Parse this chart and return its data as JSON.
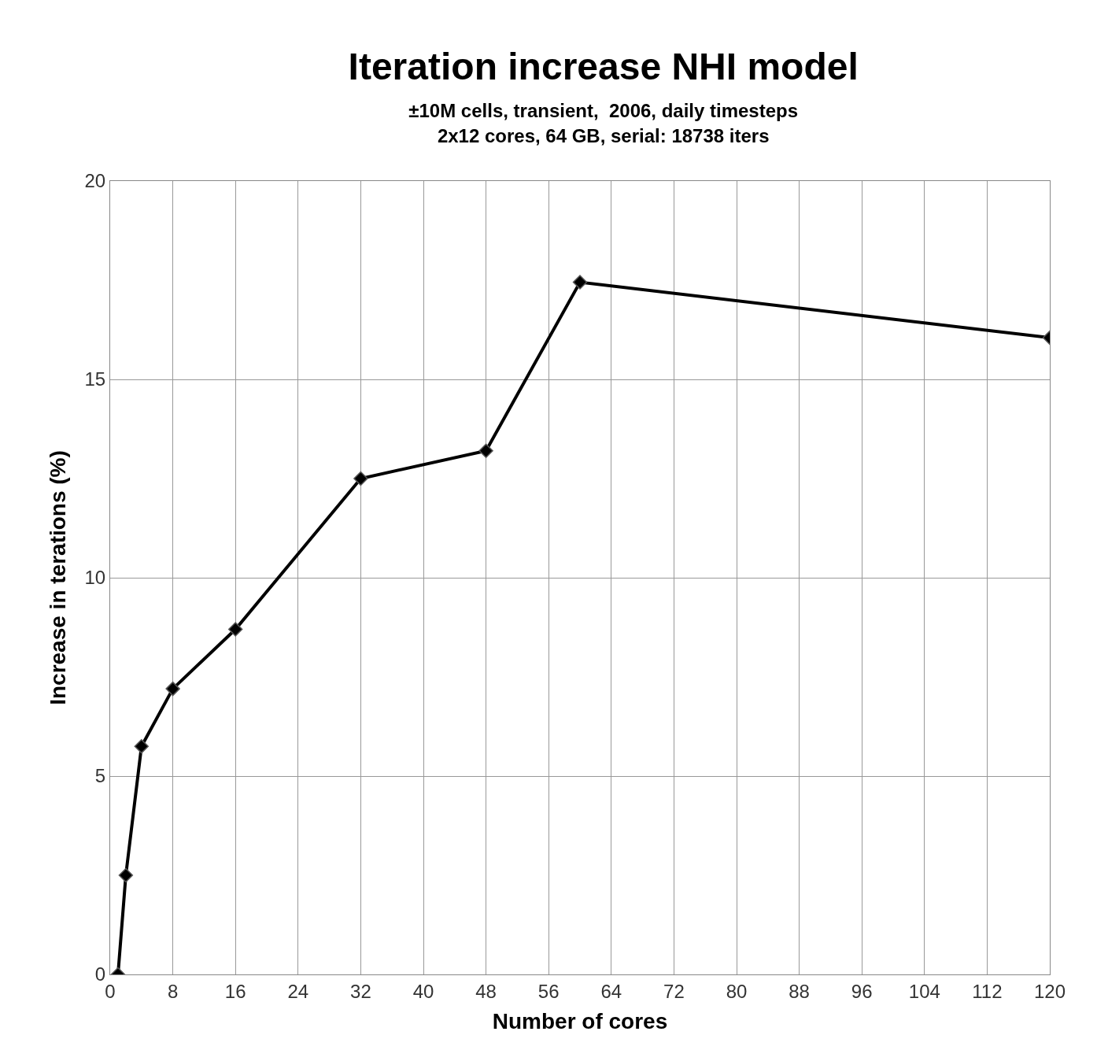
{
  "chart_data": {
    "type": "line",
    "title": "Iteration increase NHI model",
    "subtitle": "±10M cells, transient,  2006, daily timesteps\n2x12 cores, 64 GB, serial: 18738 iters",
    "xlabel": "Number of cores",
    "ylabel": "Increase in terations (%)",
    "x": [
      1,
      2,
      4,
      8,
      16,
      32,
      48,
      60,
      120
    ],
    "series": [
      {
        "color": "#000000",
        "values": [
          0,
          2.5,
          5.75,
          7.2,
          8.7,
          12.5,
          13.2,
          17.45,
          16.05
        ]
      }
    ],
    "xlim": [
      0,
      120
    ],
    "xticks": [
      0,
      8,
      16,
      24,
      32,
      40,
      48,
      56,
      64,
      72,
      80,
      88,
      96,
      104,
      112,
      120
    ],
    "ylim": [
      0,
      20
    ],
    "yticks": [
      0,
      5,
      10,
      15,
      20
    ],
    "grid": true,
    "marker": "diamond",
    "line_style": "solid"
  }
}
